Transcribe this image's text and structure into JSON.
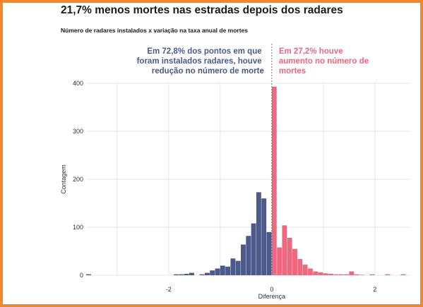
{
  "title": "21,7% menos mortes nas estradas depois dos radares",
  "subtitle": "Número de radares instalados x variação na taxa anual de mortes",
  "annotations": {
    "left": [
      "Em 72,8% dos pontos em que",
      "foram instalados radares, houve",
      "redução no número de morte"
    ],
    "right": [
      "Em 27,2% houve",
      "aumento no número de",
      "mortes"
    ]
  },
  "colors": {
    "negative": "#4b5a8a",
    "positive": "#f0677f",
    "grid": "#e6e6e6",
    "frame": "#f0882f"
  },
  "chart_data": {
    "type": "bar",
    "subtype": "histogram",
    "xlabel": "Diferença",
    "ylabel": "Contagem",
    "xlim": [
      -3.6,
      2.7
    ],
    "ylim": [
      0,
      400
    ],
    "x_ticks": [
      {
        "value": -2,
        "label": "-2"
      },
      {
        "value": 0,
        "label": "0"
      },
      {
        "value": 2,
        "label": "2"
      }
    ],
    "y_ticks": [
      {
        "value": 0,
        "label": "0"
      },
      {
        "value": 100,
        "label": "100"
      },
      {
        "value": 200,
        "label": "200"
      },
      {
        "value": 300,
        "label": "300"
      },
      {
        "value": 400,
        "label": "400"
      }
    ],
    "bin_width": 0.1,
    "series": [
      {
        "bins": [
          {
            "x0": -3.6,
            "count": 2
          },
          {
            "x0": -3.5,
            "count": 0
          },
          {
            "x0": -3.4,
            "count": 0
          },
          {
            "x0": -3.3,
            "count": 0
          },
          {
            "x0": -3.2,
            "count": 0
          },
          {
            "x0": -3.1,
            "count": 0
          },
          {
            "x0": -3.0,
            "count": 0
          },
          {
            "x0": -2.9,
            "count": 0
          },
          {
            "x0": -2.8,
            "count": 0
          },
          {
            "x0": -2.7,
            "count": 0
          },
          {
            "x0": -2.6,
            "count": 0
          },
          {
            "x0": -2.5,
            "count": 0
          },
          {
            "x0": -2.4,
            "count": 0
          },
          {
            "x0": -2.3,
            "count": 0
          },
          {
            "x0": -2.2,
            "count": 0
          },
          {
            "x0": -2.1,
            "count": 0
          },
          {
            "x0": -2.0,
            "count": 0
          },
          {
            "x0": -1.9,
            "count": 2
          },
          {
            "x0": -1.8,
            "count": 2
          },
          {
            "x0": -1.7,
            "count": 3
          },
          {
            "x0": -1.6,
            "count": 5
          },
          {
            "x0": -1.5,
            "count": 0
          },
          {
            "x0": -1.4,
            "count": 2
          },
          {
            "x0": -1.3,
            "count": 5
          },
          {
            "x0": -1.2,
            "count": 10
          },
          {
            "x0": -1.1,
            "count": 14
          },
          {
            "x0": -1.0,
            "count": 20
          },
          {
            "x0": -0.9,
            "count": 18
          },
          {
            "x0": -0.8,
            "count": 35
          },
          {
            "x0": -0.7,
            "count": 30
          },
          {
            "x0": -0.6,
            "count": 64
          },
          {
            "x0": -0.5,
            "count": 82
          },
          {
            "x0": -0.4,
            "count": 108
          },
          {
            "x0": -0.3,
            "count": 173
          },
          {
            "x0": -0.2,
            "count": 160
          },
          {
            "x0": -0.1,
            "count": 90
          },
          {
            "x0": 0.0,
            "count": 393
          },
          {
            "x0": 0.1,
            "count": 58
          },
          {
            "x0": 0.2,
            "count": 104
          },
          {
            "x0": 0.3,
            "count": 78
          },
          {
            "x0": 0.4,
            "count": 55
          },
          {
            "x0": 0.5,
            "count": 34
          },
          {
            "x0": 0.6,
            "count": 22
          },
          {
            "x0": 0.7,
            "count": 14
          },
          {
            "x0": 0.8,
            "count": 8
          },
          {
            "x0": 0.9,
            "count": 6
          },
          {
            "x0": 1.0,
            "count": 4
          },
          {
            "x0": 1.1,
            "count": 3
          },
          {
            "x0": 1.2,
            "count": 2
          },
          {
            "x0": 1.3,
            "count": 2
          },
          {
            "x0": 1.4,
            "count": 2
          },
          {
            "x0": 1.5,
            "count": 8
          },
          {
            "x0": 1.6,
            "count": 2
          },
          {
            "x0": 1.7,
            "count": 1
          },
          {
            "x0": 1.8,
            "count": 0
          },
          {
            "x0": 1.9,
            "count": 2
          },
          {
            "x0": 2.0,
            "count": 0
          },
          {
            "x0": 2.1,
            "count": 0
          },
          {
            "x0": 2.2,
            "count": 2
          },
          {
            "x0": 2.3,
            "count": 0
          },
          {
            "x0": 2.4,
            "count": 0
          },
          {
            "x0": 2.5,
            "count": 2
          }
        ]
      }
    ]
  }
}
